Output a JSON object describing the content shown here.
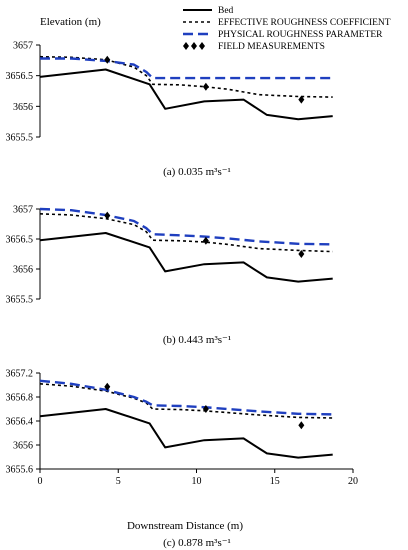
{
  "figure": {
    "ylabel": "Elevation (m)",
    "xlabel": "Downstream Distance (m)",
    "legend": [
      {
        "key": "bed",
        "label": "Bed",
        "color": "#000000",
        "style": "solid"
      },
      {
        "key": "effective",
        "label": "EFFECTIVE ROUGHNESS COEFFICIENT",
        "color": "#000000",
        "style": "dotted"
      },
      {
        "key": "physical",
        "label": "PHYSICAL ROUGHNESS PARAMETER",
        "color": "#1f3fbf",
        "style": "dashed"
      },
      {
        "key": "field",
        "label": "FIELD MEASUREMENTS",
        "color": "#000000",
        "style": "diamond"
      }
    ]
  },
  "chart_data": [
    {
      "type": "line",
      "caption": "(a) 0.035 m³s⁻¹",
      "xlim": [
        0,
        20
      ],
      "ylim": [
        3655.5,
        3657
      ],
      "y_ticks": [
        "3655.5",
        "3656",
        "3656.5",
        "3657"
      ],
      "x_ticks": [],
      "series": [
        {
          "name": "Bed",
          "x": [
            0,
            4.2,
            7,
            8,
            10.5,
            13,
            14.5,
            16.5,
            18.7
          ],
          "y": [
            3656.48,
            3656.6,
            3656.36,
            3655.96,
            3656.08,
            3656.11,
            3655.86,
            3655.79,
            3655.84
          ]
        },
        {
          "name": "EFFECTIVE ROUGHNESS COEFFICIENT",
          "x": [
            0,
            2,
            4.2,
            6,
            6.8,
            7.2,
            9,
            10.5,
            12,
            14,
            16.5,
            18.7
          ],
          "y": [
            3656.81,
            3656.8,
            3656.76,
            3656.64,
            3656.5,
            3656.36,
            3656.35,
            3656.32,
            3656.28,
            3656.19,
            3656.16,
            3656.15
          ]
        },
        {
          "name": "PHYSICAL ROUGHNESS PARAMETER",
          "x": [
            0,
            2,
            4.2,
            6,
            6.8,
            7.2,
            10.5,
            14,
            18.7
          ],
          "y": [
            3656.78,
            3656.78,
            3656.74,
            3656.68,
            3656.56,
            3656.46,
            3656.46,
            3656.46,
            3656.46
          ]
        },
        {
          "name": "FIELD MEASUREMENTS",
          "x": [
            4.3,
            10.6,
            16.7
          ],
          "y": [
            3656.76,
            3656.32,
            3656.11
          ]
        }
      ]
    },
    {
      "type": "line",
      "caption": "(b) 0.443 m³s⁻¹",
      "xlim": [
        0,
        20
      ],
      "ylim": [
        3655.5,
        3657
      ],
      "y_ticks": [
        "3655.5",
        "3656",
        "3656.5",
        "3657"
      ],
      "x_ticks": [],
      "series": [
        {
          "name": "Bed",
          "x": [
            0,
            4.2,
            7,
            8,
            10.5,
            13,
            14.5,
            16.5,
            18.7
          ],
          "y": [
            3656.48,
            3656.6,
            3656.36,
            3655.96,
            3656.08,
            3656.11,
            3655.86,
            3655.79,
            3655.84
          ]
        },
        {
          "name": "EFFECTIVE ROUGHNESS COEFFICIENT",
          "x": [
            0,
            2,
            4.2,
            6,
            6.8,
            7.2,
            9,
            10.5,
            12,
            14,
            16.5,
            18.7
          ],
          "y": [
            3656.92,
            3656.9,
            3656.84,
            3656.74,
            3656.62,
            3656.48,
            3656.47,
            3656.45,
            3656.41,
            3656.34,
            3656.31,
            3656.29
          ]
        },
        {
          "name": "PHYSICAL ROUGHNESS PARAMETER",
          "x": [
            0,
            2,
            4.2,
            6,
            6.8,
            7.2,
            9,
            10.5,
            12,
            14,
            16.5,
            18.7
          ],
          "y": [
            3657.0,
            3656.98,
            3656.9,
            3656.8,
            3656.68,
            3656.58,
            3656.56,
            3656.54,
            3656.51,
            3656.46,
            3656.42,
            3656.41
          ]
        },
        {
          "name": "FIELD MEASUREMENTS",
          "x": [
            4.3,
            10.6,
            16.7
          ],
          "y": [
            3656.89,
            3656.47,
            3656.25
          ]
        }
      ]
    },
    {
      "type": "line",
      "caption": "(c) 0.878 m³s⁻¹",
      "xlim": [
        0,
        20
      ],
      "ylim": [
        3655.6,
        3657.2
      ],
      "y_ticks": [
        "3655.6",
        "3656",
        "3656.4",
        "3656.8",
        "3657.2"
      ],
      "y_tick_values": [
        3655.6,
        3656,
        3656.4,
        3656.8,
        3657.2
      ],
      "x_ticks": [
        "0",
        "5",
        "10",
        "15",
        "20"
      ],
      "series": [
        {
          "name": "Bed",
          "x": [
            0,
            4.2,
            7,
            8,
            10.5,
            13,
            14.5,
            16.5,
            18.7
          ],
          "y": [
            3656.48,
            3656.6,
            3656.36,
            3655.96,
            3656.08,
            3656.11,
            3655.86,
            3655.79,
            3655.84
          ]
        },
        {
          "name": "EFFECTIVE ROUGHNESS COEFFICIENT",
          "x": [
            0,
            2,
            4.2,
            6,
            6.8,
            7.2,
            9,
            10.5,
            12,
            14,
            16.5,
            18.7
          ],
          "y": [
            3657.02,
            3656.98,
            3656.9,
            3656.78,
            3656.7,
            3656.6,
            3656.59,
            3656.57,
            3656.54,
            3656.5,
            3656.46,
            3656.45
          ]
        },
        {
          "name": "PHYSICAL ROUGHNESS PARAMETER",
          "x": [
            0,
            2,
            4.2,
            6,
            6.8,
            7.2,
            9,
            10.5,
            12,
            14,
            16.5,
            18.7
          ],
          "y": [
            3657.07,
            3657.02,
            3656.92,
            3656.8,
            3656.72,
            3656.66,
            3656.65,
            3656.63,
            3656.6,
            3656.56,
            3656.52,
            3656.51
          ]
        },
        {
          "name": "FIELD MEASUREMENTS",
          "x": [
            4.3,
            10.6,
            16.7
          ],
          "y": [
            3656.97,
            3656.6,
            3656.33
          ]
        }
      ]
    }
  ]
}
